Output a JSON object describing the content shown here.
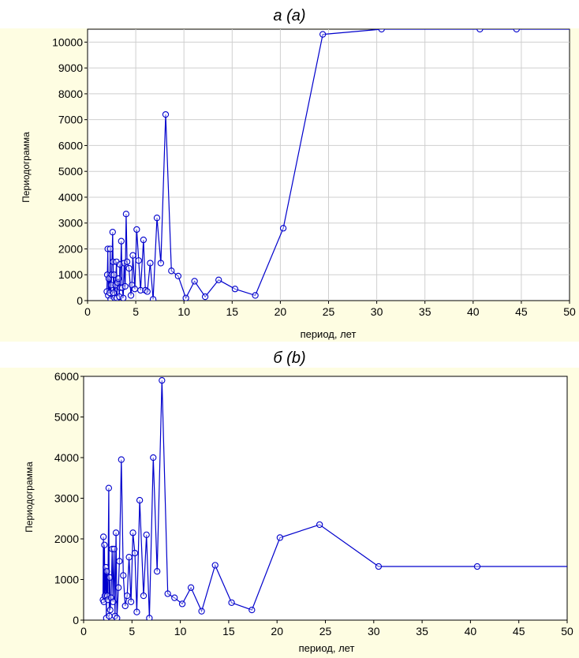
{
  "colors": {
    "panel_bg": "#fefde2",
    "plot_bg": "#ffffff",
    "series": "#0000cc",
    "grid": "#cfcfcf"
  },
  "chart_data": [
    {
      "type": "line",
      "title_main": "а",
      "title_paren": "a",
      "xlabel": "период, лет",
      "ylabel": "Периодограмма",
      "xlim": [
        0,
        50
      ],
      "ylim": [
        0,
        10500
      ],
      "xticks": [
        0,
        5,
        10,
        15,
        20,
        25,
        30,
        35,
        40,
        45,
        50
      ],
      "yticks": [
        0,
        1000,
        2000,
        3000,
        4000,
        5000,
        6000,
        7000,
        8000,
        9000,
        10000
      ],
      "grid": true,
      "marker": "circle",
      "x": [
        2.0,
        2.05,
        2.1,
        2.15,
        2.2,
        2.3,
        2.35,
        2.4,
        2.45,
        2.5,
        2.6,
        2.65,
        2.7,
        2.75,
        2.8,
        2.9,
        3.0,
        3.05,
        3.1,
        3.2,
        3.3,
        3.35,
        3.4,
        3.5,
        3.6,
        3.7,
        3.8,
        3.9,
        4.0,
        4.1,
        4.3,
        4.5,
        4.6,
        4.7,
        4.9,
        5.1,
        5.3,
        5.5,
        5.8,
        6.0,
        6.2,
        6.5,
        6.8,
        7.2,
        7.6,
        8.1,
        8.7,
        9.4,
        10.2,
        11.1,
        12.2,
        13.6,
        15.3,
        17.4,
        20.3,
        24.4,
        30.5,
        40.7,
        44.5,
        50
      ],
      "y": [
        350,
        1000,
        2000,
        200,
        850,
        300,
        2000,
        60,
        600,
        1000,
        2650,
        1500,
        300,
        1000,
        100,
        600,
        1500,
        100,
        700,
        850,
        150,
        1400,
        500,
        2300,
        500,
        100,
        1450,
        550,
        3350,
        1500,
        1250,
        200,
        600,
        1750,
        450,
        2750,
        1550,
        400,
        2350,
        400,
        350,
        1450,
        50,
        3200,
        1450,
        7200,
        1150,
        950,
        100,
        750,
        150,
        800,
        450,
        200,
        2800,
        10300,
        10500,
        10500,
        10500,
        10500
      ]
    },
    {
      "type": "line",
      "title_main": "б",
      "title_paren": "b",
      "xlabel": "период, лет",
      "ylabel": "Периодограмма",
      "xlim": [
        0,
        50
      ],
      "ylim": [
        0,
        6000
      ],
      "xticks": [
        0,
        5,
        10,
        15,
        20,
        25,
        30,
        35,
        40,
        45,
        50
      ],
      "yticks": [
        0,
        1000,
        2000,
        3000,
        4000,
        5000,
        6000
      ],
      "grid": false,
      "marker": "circle",
      "x": [
        2.0,
        2.05,
        2.1,
        2.15,
        2.2,
        2.3,
        2.35,
        2.4,
        2.45,
        2.5,
        2.6,
        2.65,
        2.7,
        2.75,
        2.85,
        2.95,
        3.05,
        3.15,
        3.25,
        3.35,
        3.45,
        3.6,
        3.7,
        3.9,
        4.1,
        4.3,
        4.5,
        4.7,
        4.9,
        5.1,
        5.3,
        5.5,
        5.8,
        6.2,
        6.5,
        6.8,
        7.2,
        7.6,
        8.1,
        8.7,
        9.4,
        10.2,
        11.1,
        12.2,
        13.6,
        15.3,
        17.4,
        20.3,
        24.4,
        30.5,
        40.7,
        50
      ],
      "y": [
        500,
        2050,
        450,
        1850,
        600,
        1300,
        50,
        1200,
        600,
        500,
        3250,
        100,
        1050,
        250,
        550,
        1750,
        450,
        1750,
        100,
        2150,
        50,
        800,
        1450,
        3950,
        1100,
        350,
        600,
        1550,
        450,
        2150,
        1650,
        200,
        2950,
        600,
        2100,
        50,
        4000,
        1200,
        5900,
        650,
        550,
        400,
        800,
        220,
        1350,
        430,
        250,
        2030,
        2350,
        1320,
        1320,
        1320
      ]
    }
  ]
}
